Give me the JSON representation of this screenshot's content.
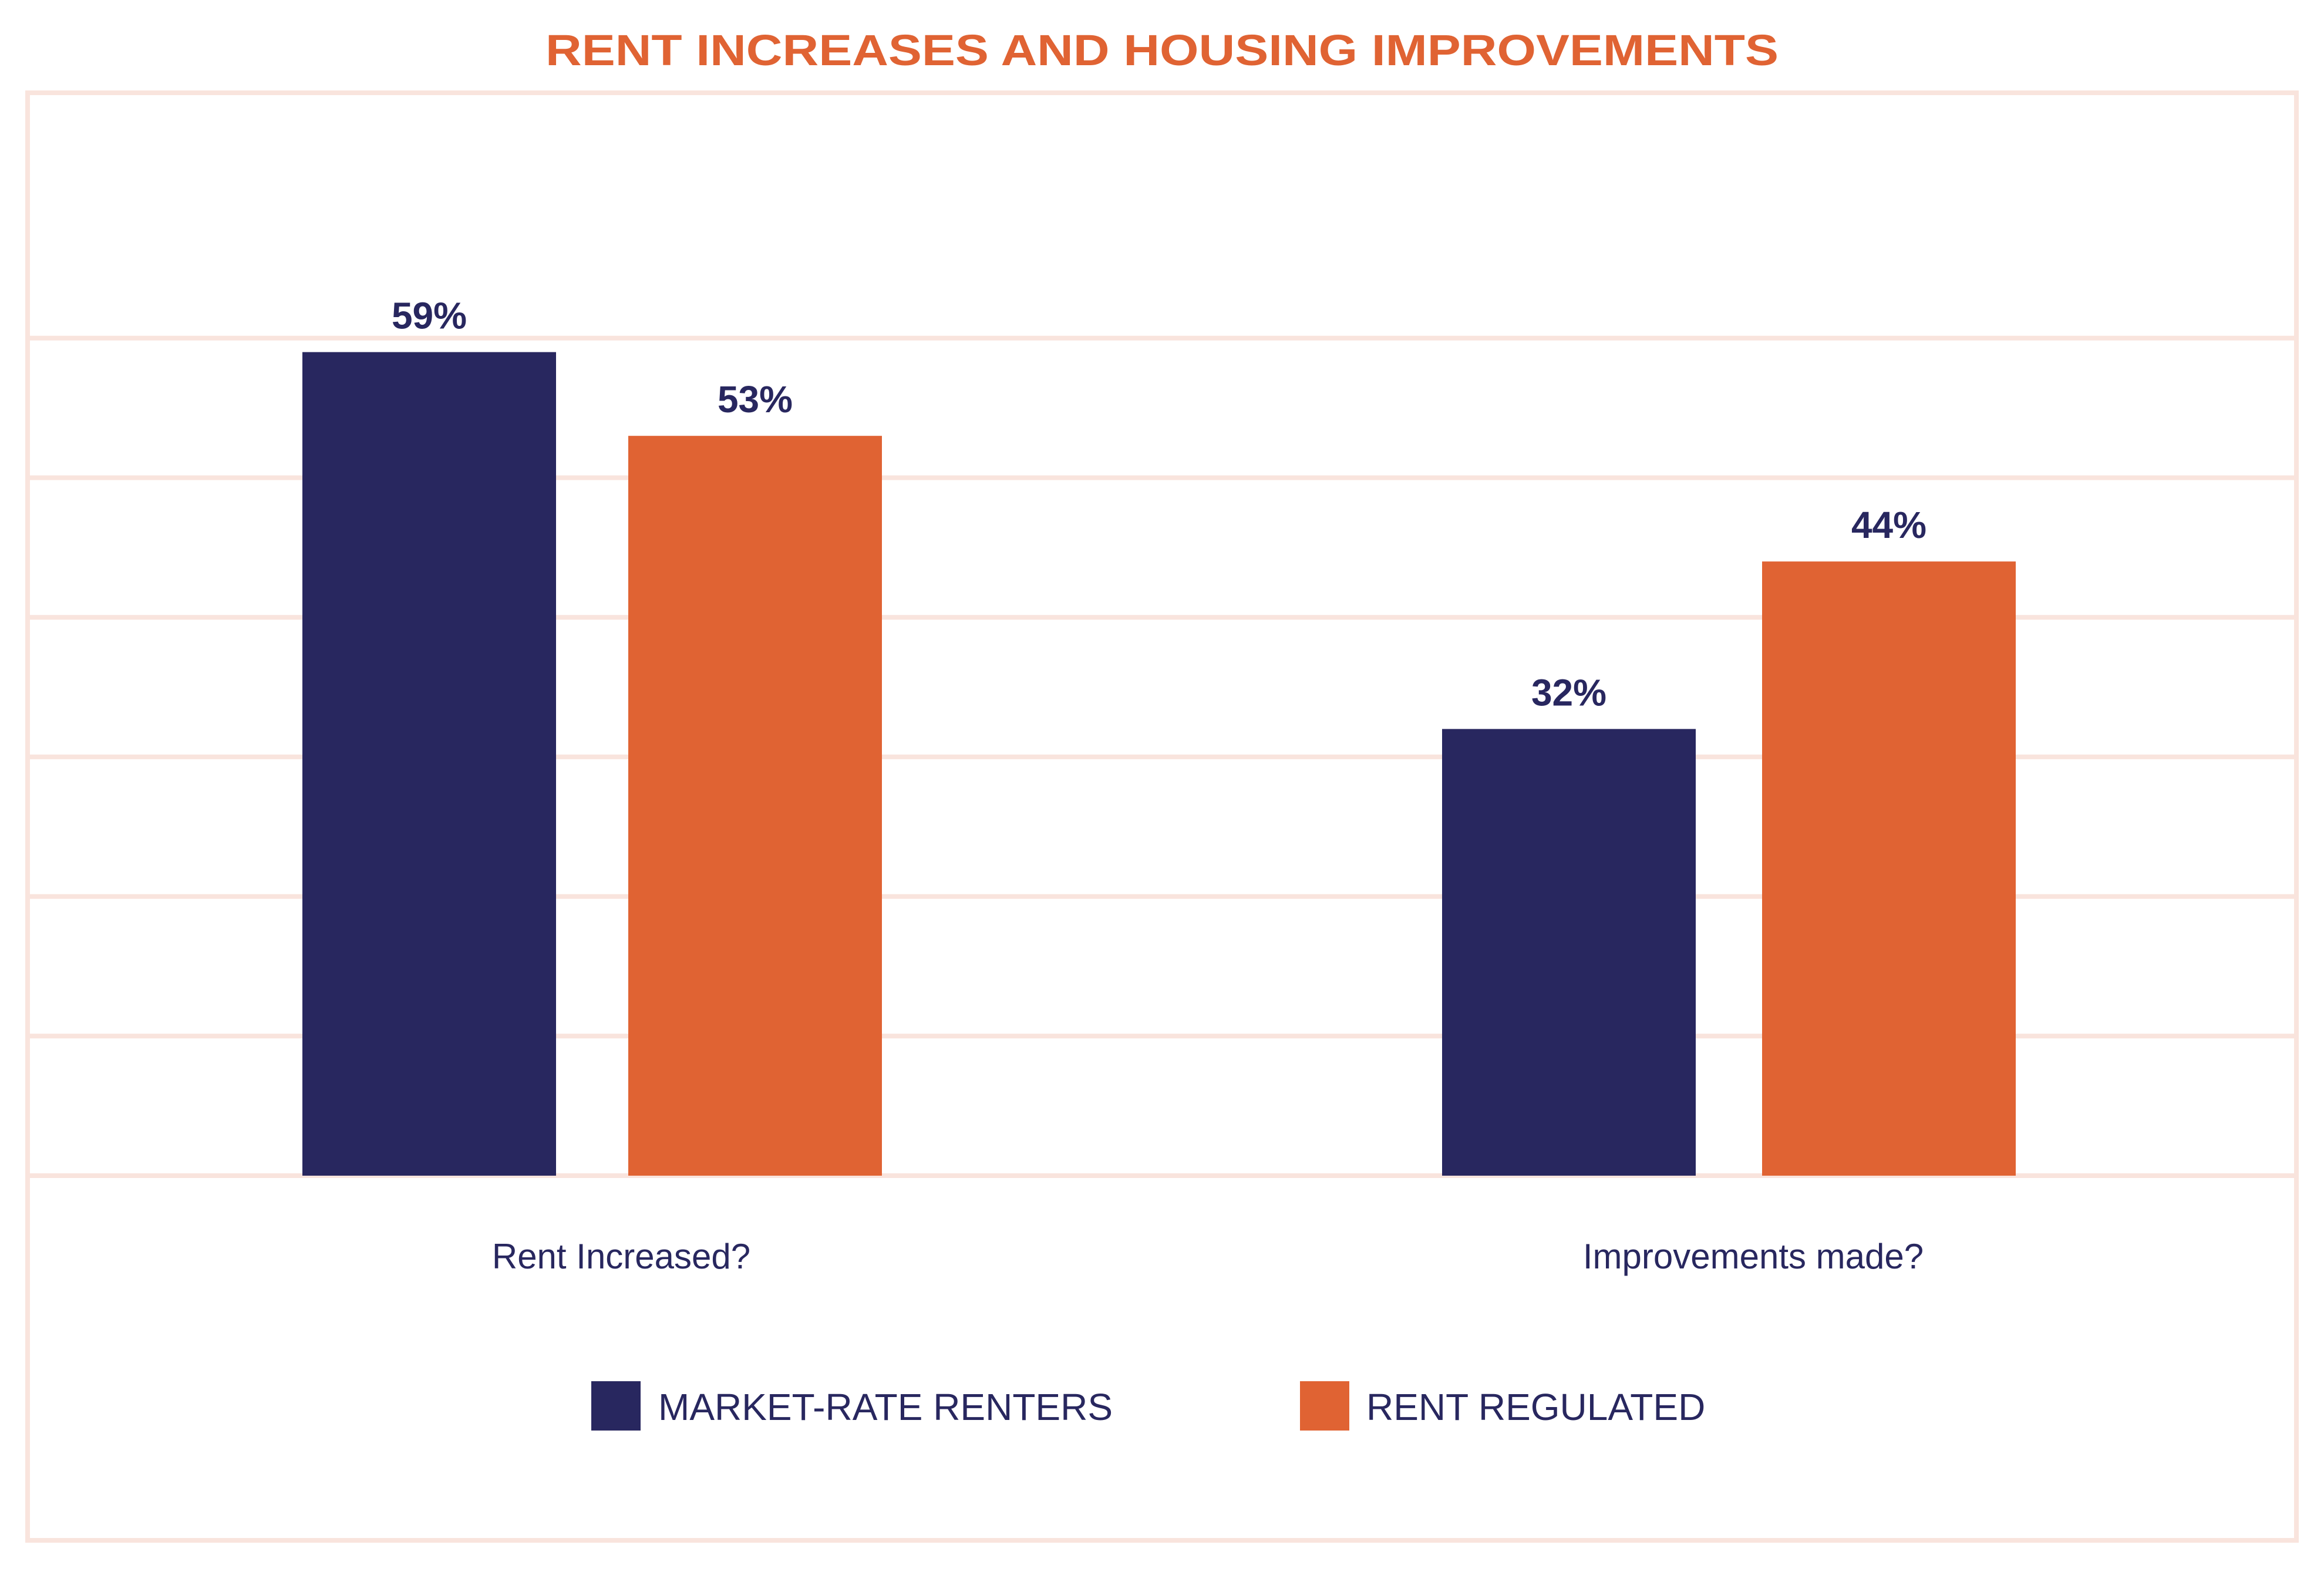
{
  "chart_data": {
    "type": "bar",
    "title": "RENT INCREASES AND HOUSING IMPROVEMENTS",
    "categories": [
      "Rent Increased?",
      "Improvements made?"
    ],
    "series": [
      {
        "name": "MARKET-RATE RENTERS",
        "values": [
          59,
          32
        ],
        "labels": [
          "59%",
          "32%"
        ],
        "color": "#28275f"
      },
      {
        "name": "RENT REGULATED",
        "values": [
          53,
          44
        ],
        "labels": [
          "53%",
          "44%"
        ],
        "color": "#e06333"
      }
    ],
    "xlabel": "",
    "ylabel": "",
    "ylim": [
      0,
      70
    ],
    "gridlines": [
      10,
      20,
      30,
      40,
      50,
      60
    ],
    "grid": true,
    "grid_color": "#f9e4dd",
    "legend_position": "bottom"
  }
}
